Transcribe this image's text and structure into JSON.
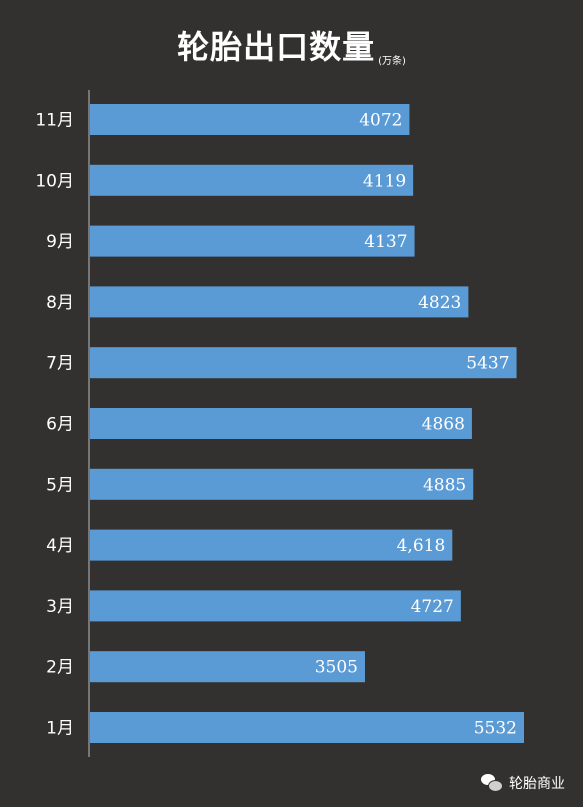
{
  "title": "轮胎出口数量",
  "unit": "(万条)",
  "footer": {
    "brand": "轮胎商业",
    "icon": "wechat-icon"
  },
  "colors": {
    "background": "#333130",
    "bar": "#5b9bd5",
    "text": "#ffffff",
    "axis": "#bbbbbb"
  },
  "chart_data": {
    "type": "bar",
    "orientation": "horizontal",
    "title": "轮胎出口数量",
    "unit": "(万条)",
    "categories": [
      "11月",
      "10月",
      "9月",
      "8月",
      "7月",
      "6月",
      "5月",
      "4月",
      "3月",
      "2月",
      "1月"
    ],
    "values": [
      4072,
      4119,
      4137,
      4823,
      5437,
      4868,
      4885,
      4618,
      4727,
      3505,
      5532
    ],
    "value_labels": [
      "4072",
      "4119",
      "4137",
      "4823",
      "5437",
      "4868",
      "4885",
      "4,618",
      "4727",
      "3505",
      "5532"
    ],
    "xlim": [
      0,
      5532
    ],
    "grid": false,
    "legend": "none"
  }
}
